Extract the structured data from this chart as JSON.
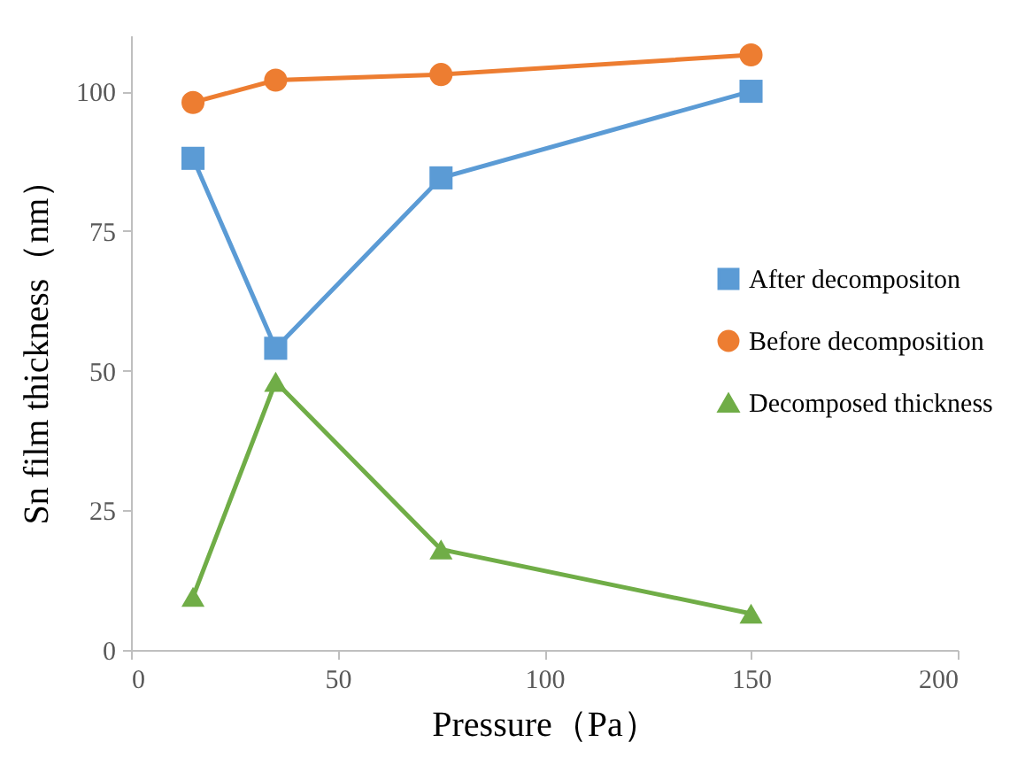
{
  "chart_data": {
    "type": "line",
    "xlabel": "Pressure（Pa）",
    "ylabel": "Sn film thickness（nm）",
    "x": [
      15,
      35,
      75,
      150
    ],
    "series": [
      {
        "name": "After decompositon",
        "color": "#5b9bd5",
        "marker": "square",
        "values": [
          88,
          54,
          84.5,
          100
        ]
      },
      {
        "name": "Before decomposition",
        "color": "#ed7d31",
        "marker": "circle",
        "values": [
          98,
          102,
          103,
          106.5
        ]
      },
      {
        "name": "Decomposed thickness",
        "color": "#70ad47",
        "marker": "triangle",
        "values": [
          9.5,
          48,
          18,
          6.5
        ]
      }
    ],
    "xlim": [
      0,
      200
    ],
    "xticks": [
      0,
      50,
      100,
      150,
      200
    ],
    "ylim": [
      0,
      110
    ],
    "yticks": [
      0,
      25,
      50,
      75,
      100
    ],
    "legend": "right",
    "grid": false
  }
}
